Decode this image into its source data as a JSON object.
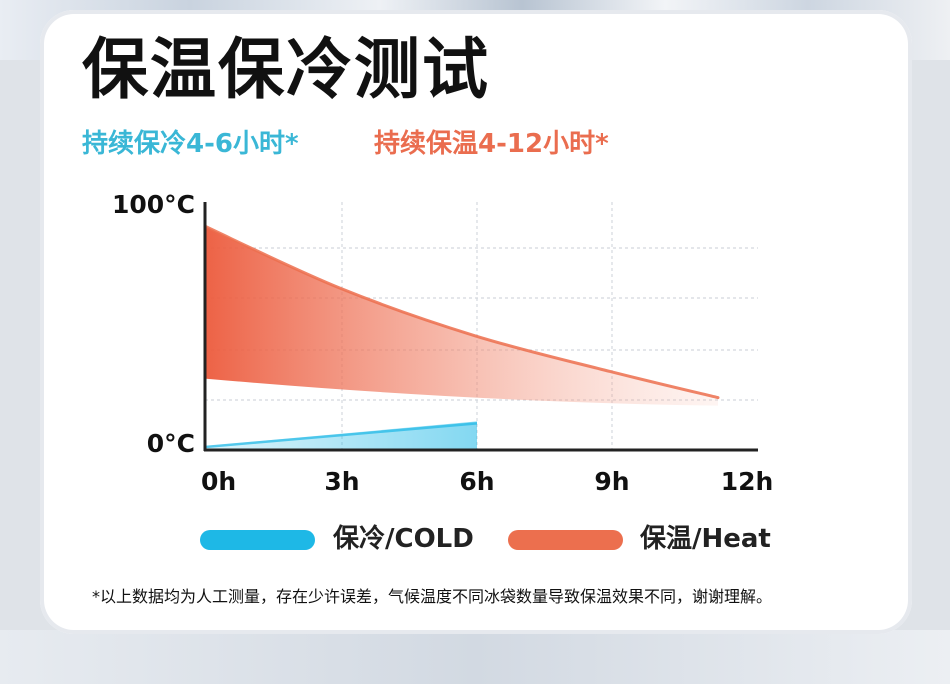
{
  "title": "保温保冷测试",
  "subtitle_cold": "持续保冷4-6小时*",
  "subtitle_heat": "持续保温4-12小时*",
  "footnote": "*以上数据均为人工测量，存在少许误差，气候温度不同冰袋数量导致保温效果不同，谢谢理解。",
  "colors": {
    "cold": "#1eb8e6",
    "heat": "#ec6f4e",
    "cold_text": "#3ab7d6",
    "heat_text": "#ea6d4f"
  },
  "chart_data": {
    "type": "area",
    "x_labels": [
      "0h",
      "3h",
      "6h",
      "9h",
      "12h"
    ],
    "y_labels": [
      "100°C",
      "0°C"
    ],
    "x": [
      0,
      3,
      6,
      9,
      12
    ],
    "xlim": [
      0,
      12
    ],
    "ylim": [
      0,
      100
    ],
    "grid": true,
    "series": [
      {
        "name": "保温/Heat",
        "color": "#ec6f4e",
        "x": [
          0,
          3,
          6,
          9,
          11.4
        ],
        "values": [
          94,
          68,
          48,
          33,
          22
        ]
      },
      {
        "name": "保冷/COLD",
        "color": "#1eb8e6",
        "x": [
          0,
          6
        ],
        "values": [
          2,
          7
        ]
      }
    ],
    "legend": {
      "placement": "bottom",
      "items": [
        "保冷/COLD",
        "保温/Heat"
      ]
    }
  }
}
